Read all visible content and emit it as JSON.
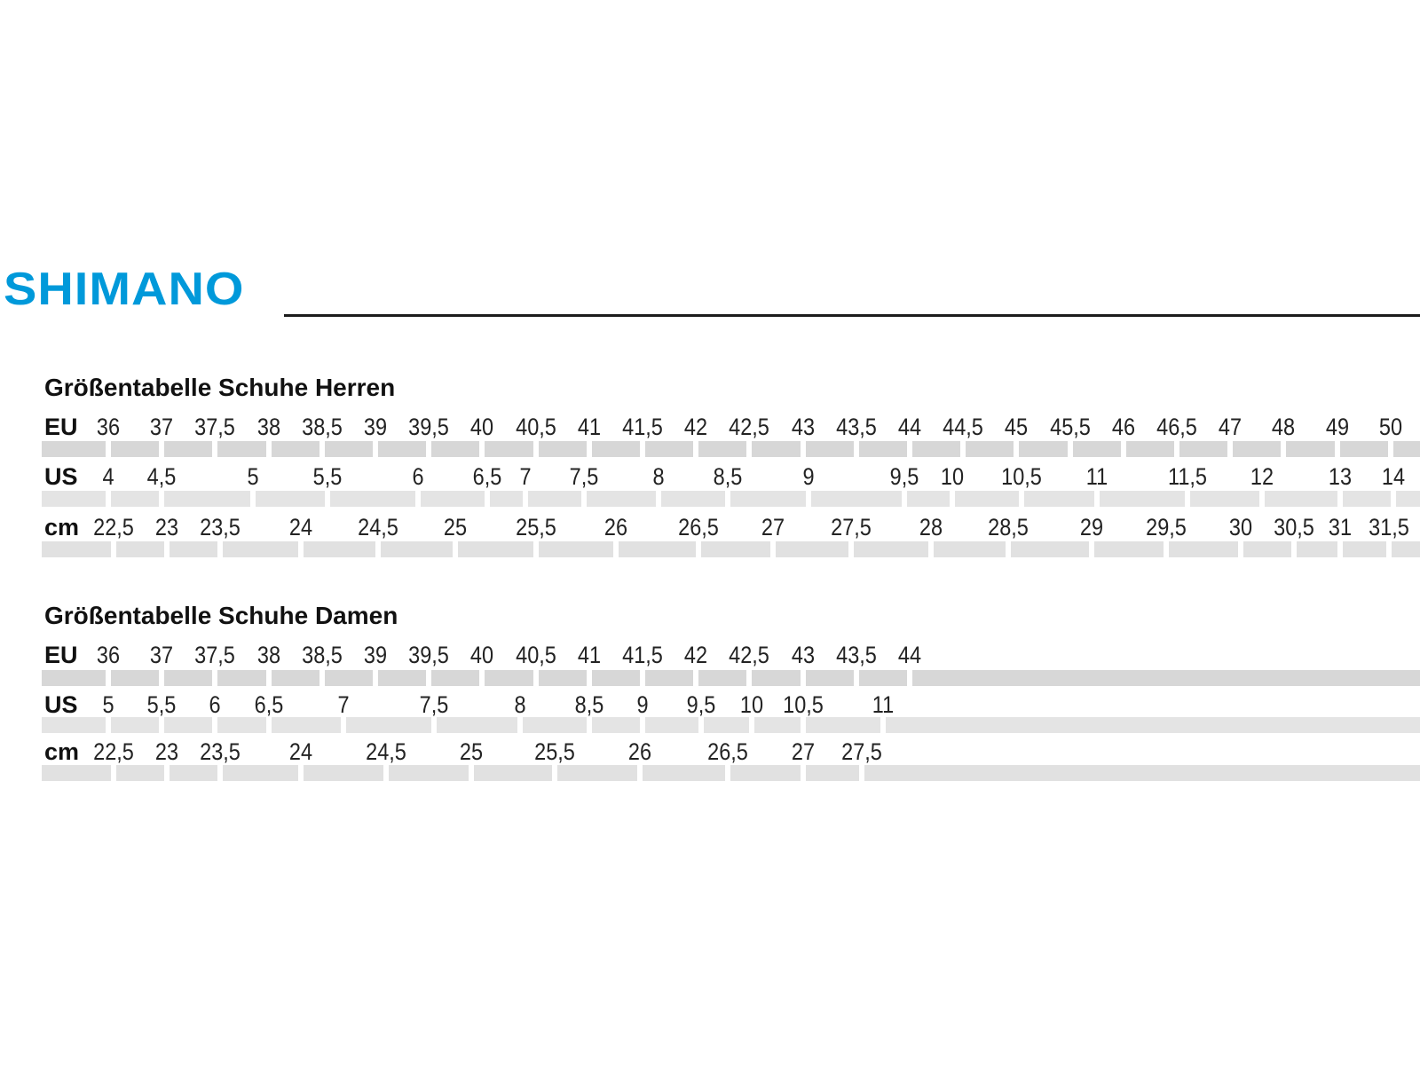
{
  "logo": {
    "text": "SHIMANO",
    "color": "#0099DA"
  },
  "chart_data": [
    {
      "type": "table",
      "title": "Größentabelle Schuhe Herren",
      "rows": [
        {
          "label": "EU",
          "bar_color": "#d7d7d7",
          "cells": [
            {
              "v": "36",
              "pos": 0
            },
            {
              "v": "37",
              "pos": 1
            },
            {
              "v": "37,5",
              "pos": 2
            },
            {
              "v": "38",
              "pos": 3
            },
            {
              "v": "38,5",
              "pos": 4
            },
            {
              "v": "39",
              "pos": 5
            },
            {
              "v": "39,5",
              "pos": 6
            },
            {
              "v": "40",
              "pos": 7
            },
            {
              "v": "40,5",
              "pos": 8
            },
            {
              "v": "41",
              "pos": 9
            },
            {
              "v": "41,5",
              "pos": 10
            },
            {
              "v": "42",
              "pos": 11
            },
            {
              "v": "42,5",
              "pos": 12
            },
            {
              "v": "43",
              "pos": 13
            },
            {
              "v": "43,5",
              "pos": 14
            },
            {
              "v": "44",
              "pos": 15
            },
            {
              "v": "44,5",
              "pos": 16
            },
            {
              "v": "45",
              "pos": 17
            },
            {
              "v": "45,5",
              "pos": 18
            },
            {
              "v": "46",
              "pos": 19
            },
            {
              "v": "46,5",
              "pos": 20
            },
            {
              "v": "47",
              "pos": 21
            },
            {
              "v": "48",
              "pos": 22
            },
            {
              "v": "49",
              "pos": 23
            },
            {
              "v": "50",
              "pos": 24
            }
          ]
        },
        {
          "label": "US",
          "bar_color": "#e4e4e4",
          "cells": [
            {
              "v": "4",
              "pos": 0
            },
            {
              "v": "4,5",
              "pos": 1
            },
            {
              "v": "5",
              "pos": 2.7
            },
            {
              "v": "5,5",
              "pos": 4.1
            },
            {
              "v": "6",
              "pos": 5.8
            },
            {
              "v": "6,5",
              "pos": 7.1
            },
            {
              "v": "7",
              "pos": 7.8
            },
            {
              "v": "7,5",
              "pos": 8.9
            },
            {
              "v": "8",
              "pos": 10.3
            },
            {
              "v": "8,5",
              "pos": 11.6
            },
            {
              "v": "9",
              "pos": 13.1
            },
            {
              "v": "9,5",
              "pos": 14.9
            },
            {
              "v": "10",
              "pos": 15.8
            },
            {
              "v": "10,5",
              "pos": 17.1
            },
            {
              "v": "11",
              "pos": 18.5
            },
            {
              "v": "11,5",
              "pos": 20.2
            },
            {
              "v": "12",
              "pos": 21.6
            },
            {
              "v": "13",
              "pos": 23.05
            },
            {
              "v": "14",
              "pos": 24.05
            }
          ]
        },
        {
          "label": "cm",
          "bar_color": "#e1e1e1",
          "cells": [
            {
              "v": "22,5",
              "pos": 0.1
            },
            {
              "v": "23",
              "pos": 1.1
            },
            {
              "v": "23,5",
              "pos": 2.1
            },
            {
              "v": "24",
              "pos": 3.6
            },
            {
              "v": "24,5",
              "pos": 5.05
            },
            {
              "v": "25",
              "pos": 6.5
            },
            {
              "v": "25,5",
              "pos": 8.0
            },
            {
              "v": "26",
              "pos": 9.5
            },
            {
              "v": "26,5",
              "pos": 11.05
            },
            {
              "v": "27",
              "pos": 12.45
            },
            {
              "v": "27,5",
              "pos": 13.9
            },
            {
              "v": "28",
              "pos": 15.4
            },
            {
              "v": "28,5",
              "pos": 16.85
            },
            {
              "v": "29",
              "pos": 18.4
            },
            {
              "v": "29,5",
              "pos": 19.8
            },
            {
              "v": "30",
              "pos": 21.2
            },
            {
              "v": "30,5",
              "pos": 22.2
            },
            {
              "v": "31",
              "pos": 23.05
            },
            {
              "v": "31,5",
              "pos": 23.97
            }
          ]
        }
      ]
    },
    {
      "type": "table",
      "title": "Größentabelle Schuhe Damen",
      "rows": [
        {
          "label": "EU",
          "bar_color": "#d7d7d7",
          "cells": [
            {
              "v": "36",
              "pos": 0
            },
            {
              "v": "37",
              "pos": 1
            },
            {
              "v": "37,5",
              "pos": 2
            },
            {
              "v": "38",
              "pos": 3
            },
            {
              "v": "38,5",
              "pos": 4
            },
            {
              "v": "39",
              "pos": 5
            },
            {
              "v": "39,5",
              "pos": 6
            },
            {
              "v": "40",
              "pos": 7
            },
            {
              "v": "40,5",
              "pos": 8
            },
            {
              "v": "41",
              "pos": 9
            },
            {
              "v": "41,5",
              "pos": 10
            },
            {
              "v": "42",
              "pos": 11
            },
            {
              "v": "42,5",
              "pos": 12
            },
            {
              "v": "43",
              "pos": 13
            },
            {
              "v": "43,5",
              "pos": 14
            },
            {
              "v": "44",
              "pos": 15
            }
          ]
        },
        {
          "label": "US",
          "bar_color": "#e4e4e4",
          "cells": [
            {
              "v": "5",
              "pos": 0
            },
            {
              "v": "5,5",
              "pos": 1
            },
            {
              "v": "6",
              "pos": 2
            },
            {
              "v": "6,5",
              "pos": 3
            },
            {
              "v": "7",
              "pos": 4.4
            },
            {
              "v": "7,5",
              "pos": 6.1
            },
            {
              "v": "8",
              "pos": 7.7
            },
            {
              "v": "8,5",
              "pos": 9.0
            },
            {
              "v": "9",
              "pos": 10.0
            },
            {
              "v": "9,5",
              "pos": 11.1
            },
            {
              "v": "10",
              "pos": 12.05
            },
            {
              "v": "10,5",
              "pos": 13.0
            },
            {
              "v": "11",
              "pos": 14.5
            }
          ]
        },
        {
          "label": "cm",
          "bar_color": "#e1e1e1",
          "cells": [
            {
              "v": "22,5",
              "pos": 0.1
            },
            {
              "v": "23",
              "pos": 1.1
            },
            {
              "v": "23,5",
              "pos": 2.1
            },
            {
              "v": "24",
              "pos": 3.6
            },
            {
              "v": "24,5",
              "pos": 5.2
            },
            {
              "v": "25",
              "pos": 6.8
            },
            {
              "v": "25,5",
              "pos": 8.35
            },
            {
              "v": "26",
              "pos": 9.95
            },
            {
              "v": "26,5",
              "pos": 11.6
            },
            {
              "v": "27",
              "pos": 13.0
            },
            {
              "v": "27,5",
              "pos": 14.1
            }
          ]
        }
      ]
    }
  ]
}
